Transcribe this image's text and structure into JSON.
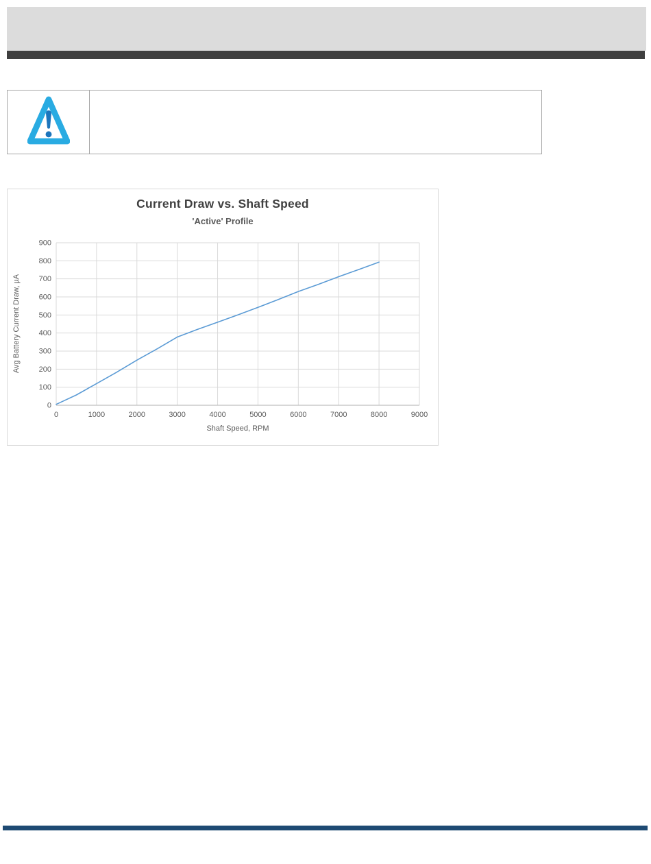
{
  "document": {
    "header": {
      "band_color": "#dcdcdc",
      "underline_color": "#3f3f3f"
    },
    "warning_box": {
      "border_color": "#a6a6a6",
      "icon": "warning-triangle-icon",
      "triangle_color": "#29abe2",
      "exclamation_color": "#1c75bc"
    },
    "footer": {
      "rule_color": "#1e4a73"
    }
  },
  "chart_data": {
    "type": "line",
    "title": "Current Draw vs. Shaft Speed",
    "subtitle": "'Active' Profile",
    "xlabel": "Shaft Speed, RPM",
    "ylabel": "Avg Battery Current Draw, µA",
    "xlim": [
      0,
      9000
    ],
    "ylim": [
      0,
      900
    ],
    "x_ticks": [
      0,
      1000,
      2000,
      3000,
      4000,
      5000,
      6000,
      7000,
      8000,
      9000
    ],
    "y_ticks": [
      0,
      100,
      200,
      300,
      400,
      500,
      600,
      700,
      800,
      900
    ],
    "grid": true,
    "legend": "none",
    "line_color": "#5b9bd5",
    "grid_color": "#d9d9d9",
    "axis_line_color": "#bfbfbf",
    "tick_label_color": "#595959",
    "title_color": "#404040",
    "subtitle_color": "#595959",
    "series": [
      {
        "name": "'Active' Profile",
        "points": [
          [
            0,
            5
          ],
          [
            500,
            57
          ],
          [
            1000,
            120
          ],
          [
            1500,
            183
          ],
          [
            2000,
            250
          ],
          [
            2500,
            312
          ],
          [
            3000,
            378
          ],
          [
            3500,
            420
          ],
          [
            4000,
            460
          ],
          [
            4500,
            500
          ],
          [
            5000,
            542
          ],
          [
            5500,
            585
          ],
          [
            6000,
            630
          ],
          [
            6500,
            670
          ],
          [
            7000,
            712
          ],
          [
            7500,
            752
          ],
          [
            8000,
            793
          ]
        ]
      }
    ]
  }
}
